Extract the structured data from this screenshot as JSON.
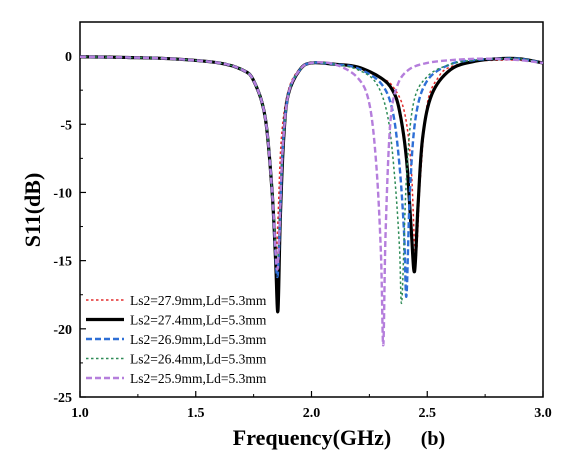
{
  "chart_data": {
    "type": "line",
    "xlabel": "Frequency(GHz)",
    "ylabel": "S11(dB)",
    "annotation": "(b)",
    "xlim": [
      1.0,
      3.0
    ],
    "ylim": [
      -25,
      2.5
    ],
    "xticks": [
      1.0,
      1.5,
      2.0,
      2.5,
      3.0
    ],
    "xtick_labels": [
      "1.0",
      "1.5",
      "2.0",
      "2.5",
      "3.0"
    ],
    "yticks": [
      0,
      -5,
      -10,
      -15,
      -20,
      -25
    ],
    "ytick_labels": [
      "0",
      "-5",
      "-10",
      "-15",
      "-20",
      "-25"
    ],
    "legend_position": "bottom-left",
    "series": [
      {
        "name": "Ls2=27.9mm,Ld=5.3mm",
        "color": "#e32b2b",
        "style": "dotted",
        "x": [
          1.0,
          1.2,
          1.4,
          1.6,
          1.7,
          1.75,
          1.8,
          1.83,
          1.845,
          1.855,
          1.87,
          1.9,
          1.95,
          2.0,
          2.1,
          2.2,
          2.3,
          2.35,
          2.4,
          2.43,
          2.45,
          2.47,
          2.5,
          2.55,
          2.6,
          2.7,
          2.8,
          2.9,
          3.0
        ],
        "y": [
          -0.05,
          -0.1,
          -0.2,
          -0.5,
          -1.0,
          -1.8,
          -4.5,
          -10.0,
          -15.0,
          -12.0,
          -6.0,
          -2.5,
          -0.9,
          -0.5,
          -0.6,
          -0.9,
          -1.6,
          -2.2,
          -4.0,
          -8.0,
          -14.8,
          -9.0,
          -3.5,
          -1.5,
          -0.8,
          -0.4,
          -0.3,
          -0.3,
          -0.5
        ]
      },
      {
        "name": "Ls2=27.4mm,Ld=5.3mm",
        "color": "#000000",
        "style": "solid",
        "x": [
          1.0,
          1.2,
          1.4,
          1.6,
          1.7,
          1.75,
          1.8,
          1.83,
          1.845,
          1.855,
          1.865,
          1.88,
          1.9,
          1.95,
          2.0,
          2.1,
          2.2,
          2.3,
          2.35,
          2.38,
          2.41,
          2.43,
          2.445,
          2.46,
          2.48,
          2.52,
          2.6,
          2.7,
          2.8,
          2.9,
          3.0
        ],
        "y": [
          -0.05,
          -0.1,
          -0.2,
          -0.5,
          -1.0,
          -1.8,
          -4.5,
          -10.0,
          -15.0,
          -18.7,
          -12.0,
          -6.0,
          -2.8,
          -1.0,
          -0.5,
          -0.6,
          -0.8,
          -1.6,
          -2.5,
          -4.0,
          -7.5,
          -12.5,
          -15.8,
          -11.0,
          -6.0,
          -2.8,
          -1.0,
          -0.4,
          -0.2,
          -0.2,
          -0.5
        ]
      },
      {
        "name": "Ls2=26.9mm,Ld=5.3mm",
        "color": "#2e6fd6",
        "style": "dashed",
        "x": [
          1.0,
          1.2,
          1.4,
          1.6,
          1.7,
          1.75,
          1.8,
          1.83,
          1.85,
          1.86,
          1.875,
          1.9,
          1.95,
          2.0,
          2.1,
          2.2,
          2.3,
          2.35,
          2.38,
          2.4,
          2.41,
          2.425,
          2.45,
          2.5,
          2.6,
          2.7,
          2.8,
          2.9,
          3.0
        ],
        "y": [
          -0.05,
          -0.1,
          -0.2,
          -0.5,
          -1.0,
          -1.8,
          -4.5,
          -10.0,
          -16.0,
          -14.0,
          -7.0,
          -2.8,
          -1.0,
          -0.5,
          -0.6,
          -0.9,
          -2.0,
          -4.0,
          -8.0,
          -13.0,
          -17.6,
          -10.0,
          -4.5,
          -1.8,
          -0.6,
          -0.3,
          -0.2,
          -0.2,
          -0.5
        ]
      },
      {
        "name": "Ls2=26.4mm,Ld=5.3mm",
        "color": "#2e8b57",
        "style": "dotted",
        "x": [
          1.0,
          1.2,
          1.4,
          1.6,
          1.7,
          1.75,
          1.8,
          1.83,
          1.85,
          1.86,
          1.875,
          1.9,
          1.95,
          2.0,
          2.1,
          2.2,
          2.28,
          2.33,
          2.36,
          2.38,
          2.39,
          2.41,
          2.44,
          2.5,
          2.6,
          2.7,
          2.8,
          2.9,
          3.0
        ],
        "y": [
          -0.05,
          -0.1,
          -0.2,
          -0.5,
          -1.0,
          -1.8,
          -4.5,
          -10.0,
          -15.0,
          -13.0,
          -7.0,
          -2.8,
          -1.0,
          -0.5,
          -0.6,
          -1.0,
          -2.0,
          -4.5,
          -9.0,
          -14.0,
          -18.0,
          -9.0,
          -3.5,
          -1.5,
          -0.6,
          -0.3,
          -0.2,
          -0.2,
          -0.5
        ]
      },
      {
        "name": "Ls2=25.9mm,Ld=5.3mm",
        "color": "#b57edc",
        "style": "dashed",
        "x": [
          1.0,
          1.2,
          1.4,
          1.6,
          1.7,
          1.75,
          1.8,
          1.83,
          1.85,
          1.86,
          1.875,
          1.9,
          1.95,
          2.0,
          2.1,
          2.2,
          2.25,
          2.28,
          2.3,
          2.31,
          2.32,
          2.34,
          2.37,
          2.42,
          2.5,
          2.6,
          2.7,
          2.8,
          2.9,
          3.0
        ],
        "y": [
          -0.05,
          -0.1,
          -0.2,
          -0.5,
          -1.0,
          -1.8,
          -4.5,
          -10.0,
          -15.5,
          -13.5,
          -7.0,
          -2.8,
          -1.0,
          -0.5,
          -0.6,
          -1.6,
          -3.5,
          -8.0,
          -14.5,
          -21.2,
          -13.0,
          -5.0,
          -2.2,
          -1.0,
          -0.5,
          -0.3,
          -0.2,
          -0.2,
          -0.3,
          -0.5
        ]
      }
    ]
  }
}
